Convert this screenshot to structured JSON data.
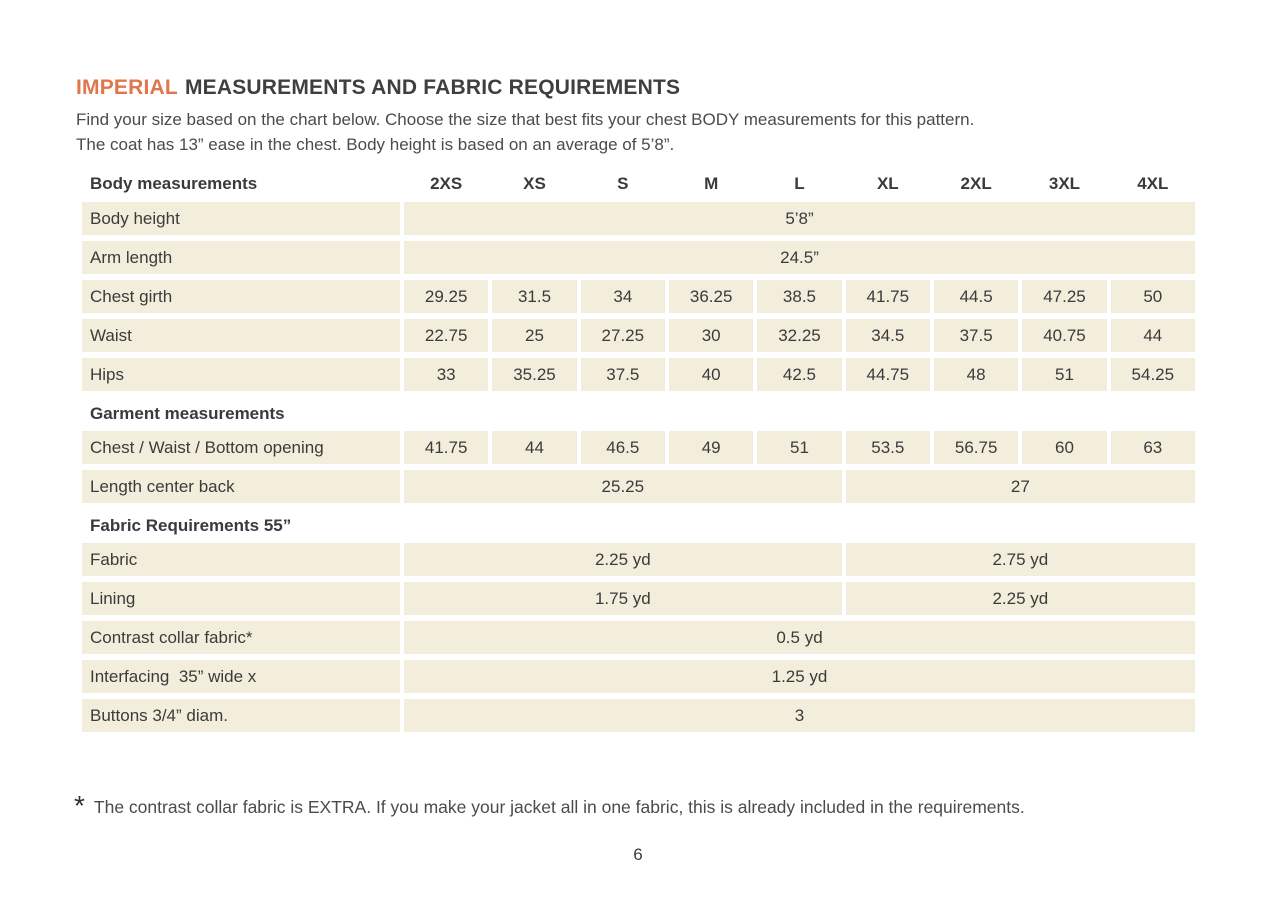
{
  "colors": {
    "accent_orange": "#E0764B",
    "row_beige": "#F3EDDC",
    "text_dark": "#3B3B3C"
  },
  "header": {
    "title_accent": "IMPERIAL",
    "title_rest": "MEASUREMENTS AND FABRIC REQUIREMENTS",
    "intro_line1": "Find your size based on the chart below. Choose the size that best fits your chest BODY measurements for this pattern.",
    "intro_line2": "The coat has 13” ease in the chest. Body height is based on an average of 5’8”."
  },
  "table": {
    "header_label": "Body measurements",
    "sizes": [
      "2XS",
      "XS",
      "S",
      "M",
      "L",
      "XL",
      "2XL",
      "3XL",
      "4XL"
    ],
    "body_height": {
      "label": "Body height",
      "value": "5’8”"
    },
    "arm_length": {
      "label": "Arm length",
      "value": "24.5”"
    },
    "chest_girth": {
      "label": "Chest girth",
      "values": [
        "29.25",
        "31.5",
        "34",
        "36.25",
        "38.5",
        "41.75",
        "44.5",
        "47.25",
        "50"
      ]
    },
    "waist": {
      "label": "Waist",
      "values": [
        "22.75",
        "25",
        "27.25",
        "30",
        "32.25",
        "34.5",
        "37.5",
        "40.75",
        "44"
      ]
    },
    "hips": {
      "label": "Hips",
      "values": [
        "33",
        "35.25",
        "37.5",
        "40",
        "42.5",
        "44.75",
        "48",
        "51",
        "54.25"
      ]
    },
    "garment_section": "Garment measurements",
    "opening": {
      "label": "Chest / Waist / Bottom opening",
      "values": [
        "41.75",
        "44",
        "46.5",
        "49",
        "51",
        "53.5",
        "56.75",
        "60",
        "63"
      ]
    },
    "length_center_back": {
      "label": "Length center back",
      "value_left": "25.25",
      "value_right": "27"
    },
    "fabric_section": "Fabric Requirements 55”",
    "fabric": {
      "label": "Fabric",
      "value_left": "2.25 yd",
      "value_right": "2.75 yd"
    },
    "lining": {
      "label": "Lining",
      "value_left": "1.75 yd",
      "value_right": "2.25 yd"
    },
    "contrast_collar": {
      "label": "Contrast collar fabric*",
      "value": "0.5 yd"
    },
    "interfacing": {
      "label": "Interfacing  35” wide x",
      "value": "1.25 yd"
    },
    "buttons": {
      "label": "Buttons 3/4” diam.",
      "value": "3"
    }
  },
  "footnote": {
    "marker": "*",
    "text": "The contrast collar fabric is EXTRA. If you make your jacket all in one fabric, this is already included in the requirements."
  },
  "page_number": "6"
}
